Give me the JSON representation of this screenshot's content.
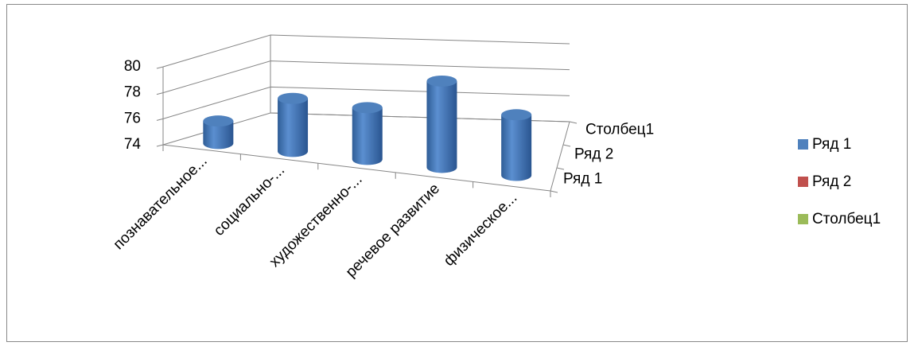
{
  "chart_data": {
    "type": "bar3d",
    "categories": [
      "познавательное...",
      "социально-...",
      "художественно-...",
      "речевое развитие",
      "физическое..."
    ],
    "series": [
      {
        "name": "Ряд 1",
        "color": "#4f81bd",
        "values": [
          75.7,
          77.9,
          77.7,
          80,
          78.1
        ]
      },
      {
        "name": "Ряд 2",
        "color": "#c0504d",
        "values": [
          null,
          null,
          null,
          null,
          null
        ]
      },
      {
        "name": "Столбец1",
        "color": "#9bbb59",
        "values": [
          null,
          null,
          null,
          null,
          null
        ]
      }
    ],
    "ylim": [
      74,
      80
    ],
    "yticks": [
      74,
      76,
      78,
      80
    ],
    "grid": true,
    "legend": "right"
  }
}
